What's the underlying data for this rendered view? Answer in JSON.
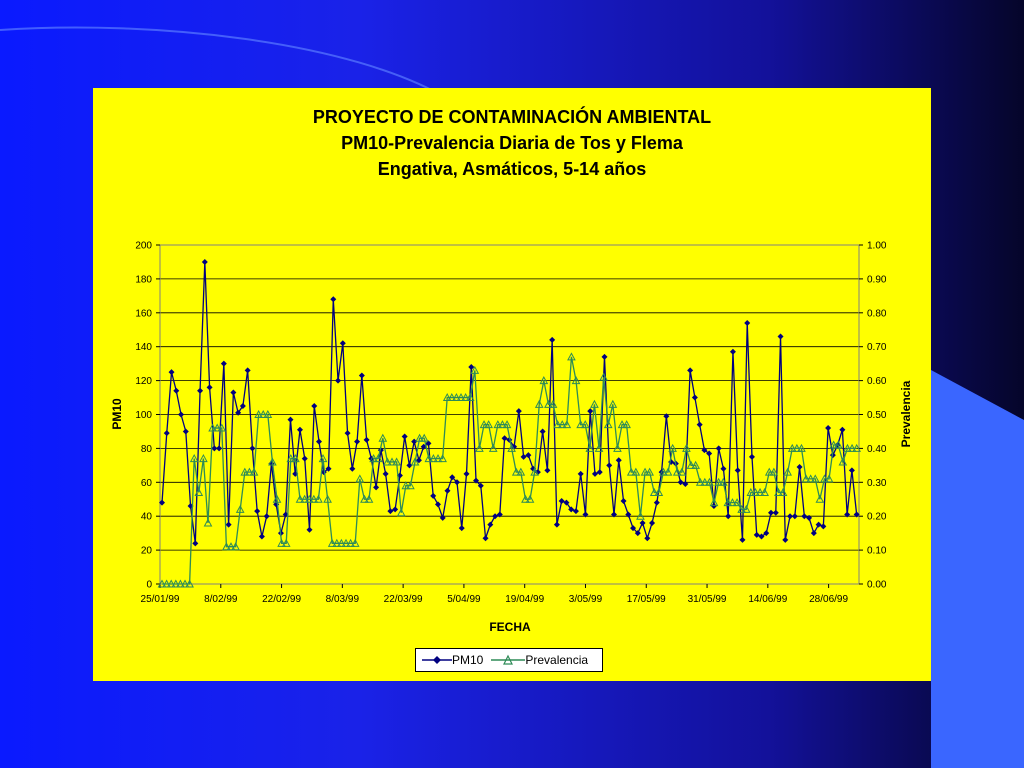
{
  "chart_data": {
    "type": "line",
    "title": "PROYECTO DE CONTAMINACIÓN AMBIENTAL",
    "subtitle1": "PM10-Prevalencia Diaria de Tos y Flema",
    "subtitle2": "Engativa, Asmáticos, 5-14 años",
    "xlabel": "FECHA",
    "ylabel": "PM10",
    "y2label": "Prevalencia",
    "x_tick_labels": [
      "25/01/99",
      "8/02/99",
      "22/02/99",
      "8/03/99",
      "22/03/99",
      "5/04/99",
      "19/04/99",
      "3/05/99",
      "17/05/99",
      "31/05/99",
      "14/06/99",
      "28/06/99"
    ],
    "y_tick_labels": [
      "0",
      "20",
      "40",
      "60",
      "80",
      "100",
      "120",
      "140",
      "160",
      "180",
      "200"
    ],
    "y2_tick_labels": [
      "0.00",
      "0.10",
      "0.20",
      "0.30",
      "0.40",
      "0.50",
      "0.60",
      "0.70",
      "0.80",
      "0.90",
      "1.00"
    ],
    "ylim": [
      0,
      200
    ],
    "y2lim": [
      0,
      1
    ],
    "xlim_days": [
      0,
      161
    ],
    "grid": true,
    "legend_position": "bottom",
    "series": [
      {
        "name": "PM10",
        "axis": "left",
        "color": "#000080",
        "marker": "diamond",
        "values": [
          48,
          89,
          125,
          114,
          100,
          90,
          46,
          24,
          114,
          190,
          116,
          80,
          80,
          130,
          35,
          113,
          101,
          105,
          126,
          80,
          43,
          28,
          40,
          71,
          47,
          30,
          41,
          97,
          65,
          91,
          74,
          32,
          105,
          84,
          66,
          68,
          168,
          120,
          142,
          89,
          68,
          84,
          123,
          85,
          74,
          57,
          79,
          65,
          43,
          44,
          64,
          87,
          70,
          84,
          73,
          81,
          83,
          52,
          47,
          39,
          55,
          63,
          60,
          33,
          65,
          128,
          61,
          58,
          27,
          35,
          40,
          41,
          86,
          85,
          81,
          102,
          75,
          76,
          68,
          66,
          90,
          67,
          144,
          35,
          49,
          48,
          44,
          43,
          65,
          41,
          102,
          65,
          66,
          134,
          70,
          41,
          73,
          49,
          41,
          33,
          30,
          36,
          27,
          36,
          48,
          66,
          99,
          72,
          71,
          60,
          59,
          126,
          110,
          94,
          79,
          77,
          46,
          80,
          68,
          40,
          137,
          67,
          26,
          154,
          75,
          29,
          28,
          30,
          42,
          42,
          146,
          26,
          40,
          40,
          69,
          40,
          39,
          30,
          35,
          34,
          92,
          76,
          82,
          91,
          41,
          67,
          41
        ]
      },
      {
        "name": "Prevalencia",
        "axis": "right",
        "color": "#2e8b57",
        "marker": "triangle",
        "values": [
          0,
          0,
          0,
          0,
          0,
          0,
          0,
          0.37,
          0.27,
          0.37,
          0.18,
          0.46,
          0.46,
          0.46,
          0.11,
          0.11,
          0.11,
          0.22,
          0.33,
          0.33,
          0.33,
          0.5,
          0.5,
          0.5,
          0.36,
          0.25,
          0.12,
          0.12,
          0.37,
          0.37,
          0.25,
          0.25,
          0.25,
          0.25,
          0.25,
          0.37,
          0.25,
          0.12,
          0.12,
          0.12,
          0.12,
          0.12,
          0.12,
          0.31,
          0.25,
          0.25,
          0.37,
          0.37,
          0.43,
          0.36,
          0.36,
          0.36,
          0.21,
          0.29,
          0.29,
          0.36,
          0.43,
          0.43,
          0.37,
          0.37,
          0.37,
          0.37,
          0.55,
          0.55,
          0.55,
          0.55,
          0.55,
          0.55,
          0.63,
          0.4,
          0.47,
          0.47,
          0.4,
          0.47,
          0.47,
          0.47,
          0.4,
          0.33,
          0.33,
          0.25,
          0.25,
          0.33,
          0.53,
          0.6,
          0.53,
          0.53,
          0.47,
          0.47,
          0.47,
          0.67,
          0.6,
          0.47,
          0.47,
          0.4,
          0.53,
          0.4,
          0.61,
          0.47,
          0.53,
          0.4,
          0.47,
          0.47,
          0.33,
          0.33,
          0.2,
          0.33,
          0.33,
          0.27,
          0.27,
          0.33,
          0.33,
          0.4,
          0.33,
          0.33,
          0.4,
          0.35,
          0.35,
          0.3,
          0.3,
          0.3,
          0.24,
          0.3,
          0.3,
          0.24,
          0.24,
          0.24,
          0.22,
          0.22,
          0.27,
          0.27,
          0.27,
          0.27,
          0.33,
          0.33,
          0.27,
          0.27,
          0.33,
          0.4,
          0.4,
          0.4,
          0.31,
          0.31,
          0.31,
          0.25,
          0.31,
          0.31,
          0.41,
          0.41,
          0.36,
          0.4,
          0.4,
          0.4
        ]
      }
    ]
  }
}
